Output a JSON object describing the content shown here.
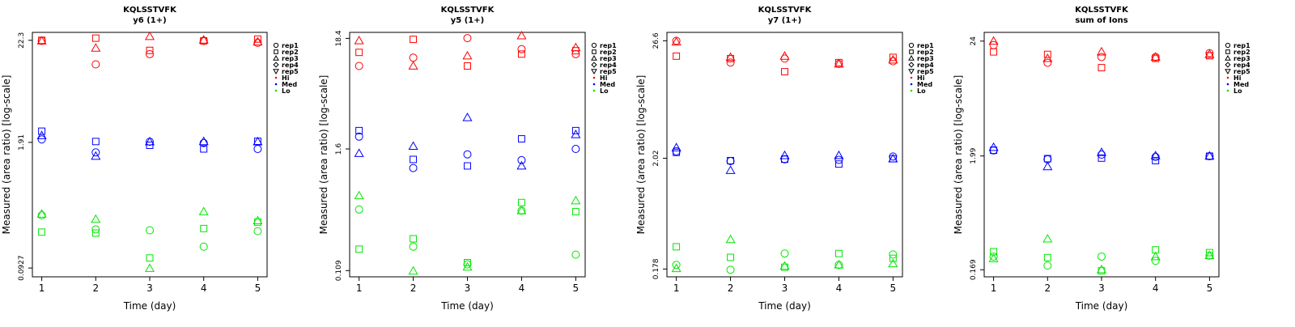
{
  "legend": {
    "replicates": [
      {
        "label": "rep1",
        "shape": "circle"
      },
      {
        "label": "rep2",
        "shape": "square"
      },
      {
        "label": "rep3",
        "shape": "triangle-up"
      },
      {
        "label": "rep4",
        "shape": "diamond"
      },
      {
        "label": "rep5",
        "shape": "triangle-down"
      }
    ],
    "levels": [
      {
        "label": "Hi",
        "color": "#ff0000"
      },
      {
        "label": "Med",
        "color": "#0000ff"
      },
      {
        "label": "Lo",
        "color": "#00e600"
      }
    ]
  },
  "chart_data": [
    {
      "type": "scatter",
      "title": "KQLSSTVFK",
      "subtitle": "y6 (1+)",
      "xlabel": "Time (day)",
      "ylabel": "Measured (area ratio) [log-scale]",
      "x_ticks": [
        "1",
        "2",
        "3",
        "4",
        "5"
      ],
      "y_ticks": [
        0.0927,
        1.91,
        22.3
      ],
      "y_tick_labels": [
        "0.0927",
        "1.91",
        "22.3"
      ],
      "ylim_log": [
        0.075,
        27
      ],
      "series": [
        {
          "name": "Hi rep1",
          "level": "Hi",
          "rep": "rep1",
          "x": [
            1,
            2,
            3,
            4,
            5
          ],
          "y": [
            22.0,
            12.5,
            16.0,
            22.0,
            21.0
          ]
        },
        {
          "name": "Hi rep2",
          "level": "Hi",
          "rep": "rep2",
          "x": [
            1,
            2,
            3,
            4,
            5
          ],
          "y": [
            22.3,
            23.5,
            17.5,
            22.0,
            23.0
          ]
        },
        {
          "name": "Hi rep3",
          "level": "Hi",
          "rep": "rep3",
          "x": [
            1,
            2,
            3,
            4,
            5
          ],
          "y": [
            22.0,
            18.5,
            24.5,
            22.5,
            21.5
          ]
        },
        {
          "name": "Med rep1",
          "level": "Med",
          "rep": "rep1",
          "x": [
            1,
            2,
            3,
            4,
            5
          ],
          "y": [
            2.05,
            1.5,
            1.94,
            1.88,
            1.63
          ]
        },
        {
          "name": "Med rep2",
          "level": "Med",
          "rep": "rep2",
          "x": [
            1,
            2,
            3,
            4,
            5
          ],
          "y": [
            2.5,
            1.95,
            1.78,
            1.63,
            1.96
          ]
        },
        {
          "name": "Med rep3",
          "level": "Med",
          "rep": "rep3",
          "x": [
            1,
            2,
            3,
            4,
            5
          ],
          "y": [
            2.25,
            1.37,
            1.94,
            1.95,
            1.94
          ]
        },
        {
          "name": "Lo rep1",
          "level": "Lo",
          "rep": "rep1",
          "x": [
            1,
            2,
            3,
            4,
            5
          ],
          "y": [
            0.33,
            0.235,
            0.23,
            0.155,
            0.225
          ]
        },
        {
          "name": "Lo rep2",
          "level": "Lo",
          "rep": "rep2",
          "x": [
            1,
            2,
            3,
            4,
            5
          ],
          "y": [
            0.22,
            0.215,
            0.118,
            0.24,
            0.28
          ]
        },
        {
          "name": "Lo rep3",
          "level": "Lo",
          "rep": "rep3",
          "x": [
            1,
            2,
            3,
            4,
            5
          ],
          "y": [
            0.34,
            0.3,
            0.092,
            0.36,
            0.29
          ]
        }
      ]
    },
    {
      "type": "scatter",
      "title": "KQLSSTVFK",
      "subtitle": "y5 (1+)",
      "xlabel": "Time (day)",
      "ylabel": "Measured (area ratio) [log-scale]",
      "x_ticks": [
        "1",
        "2",
        "3",
        "4",
        "5"
      ],
      "y_ticks": [
        0.109,
        1.6,
        18.4
      ],
      "y_tick_labels": [
        "0.109",
        "1.6",
        "18.4"
      ],
      "ylim_log": [
        0.095,
        21
      ],
      "series": [
        {
          "name": "Hi rep1",
          "level": "Hi",
          "rep": "rep1",
          "x": [
            1,
            2,
            3,
            4,
            5
          ],
          "y": [
            10.0,
            12.0,
            18.5,
            14.5,
            13.0
          ]
        },
        {
          "name": "Hi rep2",
          "level": "Hi",
          "rep": "rep2",
          "x": [
            1,
            2,
            3,
            4,
            5
          ],
          "y": [
            13.5,
            18.0,
            10.0,
            13.0,
            14.0
          ]
        },
        {
          "name": "Hi rep3",
          "level": "Hi",
          "rep": "rep3",
          "x": [
            1,
            2,
            3,
            4,
            5
          ],
          "y": [
            17.5,
            10.0,
            12.5,
            19.5,
            15.0
          ]
        },
        {
          "name": "Med rep1",
          "level": "Med",
          "rep": "rep1",
          "x": [
            1,
            2,
            3,
            4,
            5
          ],
          "y": [
            2.1,
            1.05,
            1.42,
            1.25,
            1.6
          ]
        },
        {
          "name": "Med rep2",
          "level": "Med",
          "rep": "rep2",
          "x": [
            1,
            2,
            3,
            4,
            5
          ],
          "y": [
            2.4,
            1.27,
            1.1,
            2.0,
            2.4
          ]
        },
        {
          "name": "Med rep3",
          "level": "Med",
          "rep": "rep3",
          "x": [
            1,
            2,
            3,
            4,
            5
          ],
          "y": [
            1.45,
            1.7,
            3.2,
            1.1,
            2.2
          ]
        },
        {
          "name": "Lo rep1",
          "level": "Lo",
          "rep": "rep1",
          "x": [
            1,
            2,
            3,
            4,
            5
          ],
          "y": [
            0.42,
            0.185,
            0.125,
            0.41,
            0.155
          ]
        },
        {
          "name": "Lo rep2",
          "level": "Lo",
          "rep": "rep2",
          "x": [
            1,
            2,
            3,
            4,
            5
          ],
          "y": [
            0.175,
            0.22,
            0.13,
            0.49,
            0.4
          ]
        },
        {
          "name": "Lo rep3",
          "level": "Lo",
          "rep": "rep3",
          "x": [
            1,
            2,
            3,
            4,
            5
          ],
          "y": [
            0.57,
            0.108,
            0.118,
            0.41,
            0.51
          ]
        }
      ]
    },
    {
      "type": "scatter",
      "title": "KQLSSTVFK",
      "subtitle": "y7 (1+)",
      "xlabel": "Time (day)",
      "ylabel": "Measured (area ratio) [log-scale]",
      "x_ticks": [
        "1",
        "2",
        "3",
        "4",
        "5"
      ],
      "y_ticks": [
        0.178,
        2.02,
        26.6
      ],
      "y_tick_labels": [
        "0.178",
        "2.02",
        "26.6"
      ],
      "ylim_log": [
        0.15,
        32
      ],
      "series": [
        {
          "name": "Hi rep1",
          "level": "Hi",
          "rep": "rep1",
          "x": [
            1,
            2,
            3,
            4,
            5
          ],
          "y": [
            26.6,
            16.5,
            18.0,
            16.0,
            17.0
          ]
        },
        {
          "name": "Hi rep2",
          "level": "Hi",
          "rep": "rep2",
          "x": [
            1,
            2,
            3,
            4,
            5
          ],
          "y": [
            19.0,
            18.0,
            13.5,
            16.5,
            18.5
          ]
        },
        {
          "name": "Hi rep3",
          "level": "Hi",
          "rep": "rep3",
          "x": [
            1,
            2,
            3,
            4,
            5
          ],
          "y": [
            26.0,
            18.5,
            19.0,
            16.0,
            17.5
          ]
        },
        {
          "name": "Med rep1",
          "level": "Med",
          "rep": "rep1",
          "x": [
            1,
            2,
            3,
            4,
            5
          ],
          "y": [
            2.35,
            1.9,
            1.98,
            1.95,
            2.1
          ]
        },
        {
          "name": "Med rep2",
          "level": "Med",
          "rep": "rep2",
          "x": [
            1,
            2,
            3,
            4,
            5
          ],
          "y": [
            2.3,
            1.92,
            1.98,
            1.78,
            2.0
          ]
        },
        {
          "name": "Med rep3",
          "level": "Med",
          "rep": "rep3",
          "x": [
            1,
            2,
            3,
            4,
            5
          ],
          "y": [
            2.55,
            1.55,
            2.15,
            2.15,
            2.0
          ]
        },
        {
          "name": "Lo rep1",
          "level": "Lo",
          "rep": "rep1",
          "x": [
            1,
            2,
            3,
            4,
            5
          ],
          "y": [
            0.195,
            0.175,
            0.25,
            0.195,
            0.245
          ]
        },
        {
          "name": "Lo rep2",
          "level": "Lo",
          "rep": "rep2",
          "x": [
            1,
            2,
            3,
            4,
            5
          ],
          "y": [
            0.29,
            0.23,
            0.185,
            0.25,
            0.225
          ]
        },
        {
          "name": "Lo rep3",
          "level": "Lo",
          "rep": "rep3",
          "x": [
            1,
            2,
            3,
            4,
            5
          ],
          "y": [
            0.18,
            0.34,
            0.19,
            0.195,
            0.2
          ]
        }
      ]
    },
    {
      "type": "scatter",
      "title": "KQLSSTVFK",
      "subtitle": "sum of Ions",
      "xlabel": "Time (day)",
      "ylabel": "Measured (area ratio) [log-scale]",
      "x_ticks": [
        "1",
        "2",
        "3",
        "4",
        "5"
      ],
      "y_ticks": [
        0.169,
        1.99,
        24
      ],
      "y_tick_labels": [
        "0.169",
        "1.99",
        "24"
      ],
      "ylim_log": [
        0.145,
        29
      ],
      "series": [
        {
          "name": "Hi rep1",
          "level": "Hi",
          "rep": "rep1",
          "x": [
            1,
            2,
            3,
            4,
            5
          ],
          "y": [
            22.0,
            15.0,
            17.0,
            17.0,
            18.5
          ]
        },
        {
          "name": "Hi rep2",
          "level": "Hi",
          "rep": "rep2",
          "x": [
            1,
            2,
            3,
            4,
            5
          ],
          "y": [
            19.0,
            18.0,
            13.5,
            16.5,
            17.5
          ]
        },
        {
          "name": "Hi rep3",
          "level": "Hi",
          "rep": "rep3",
          "x": [
            1,
            2,
            3,
            4,
            5
          ],
          "y": [
            24.0,
            16.5,
            19.0,
            17.0,
            18.0
          ]
        },
        {
          "name": "Med rep1",
          "level": "Med",
          "rep": "rep1",
          "x": [
            1,
            2,
            3,
            4,
            5
          ],
          "y": [
            2.25,
            1.85,
            2.05,
            1.95,
            1.98
          ]
        },
        {
          "name": "Med rep2",
          "level": "Med",
          "rep": "rep2",
          "x": [
            1,
            2,
            3,
            4,
            5
          ],
          "y": [
            2.25,
            1.88,
            1.9,
            1.8,
            1.98
          ]
        },
        {
          "name": "Med rep3",
          "level": "Med",
          "rep": "rep3",
          "x": [
            1,
            2,
            3,
            4,
            5
          ],
          "y": [
            2.4,
            1.58,
            2.15,
            2.0,
            1.99
          ]
        },
        {
          "name": "Lo rep1",
          "level": "Lo",
          "rep": "rep1",
          "x": [
            1,
            2,
            3,
            4,
            5
          ],
          "y": [
            0.225,
            0.185,
            0.225,
            0.205,
            0.23
          ]
        },
        {
          "name": "Lo rep2",
          "level": "Lo",
          "rep": "rep2",
          "x": [
            1,
            2,
            3,
            4,
            5
          ],
          "y": [
            0.25,
            0.22,
            0.165,
            0.26,
            0.245
          ]
        },
        {
          "name": "Lo rep3",
          "level": "Lo",
          "rep": "rep3",
          "x": [
            1,
            2,
            3,
            4,
            5
          ],
          "y": [
            0.215,
            0.33,
            0.17,
            0.225,
            0.23
          ]
        }
      ]
    }
  ]
}
